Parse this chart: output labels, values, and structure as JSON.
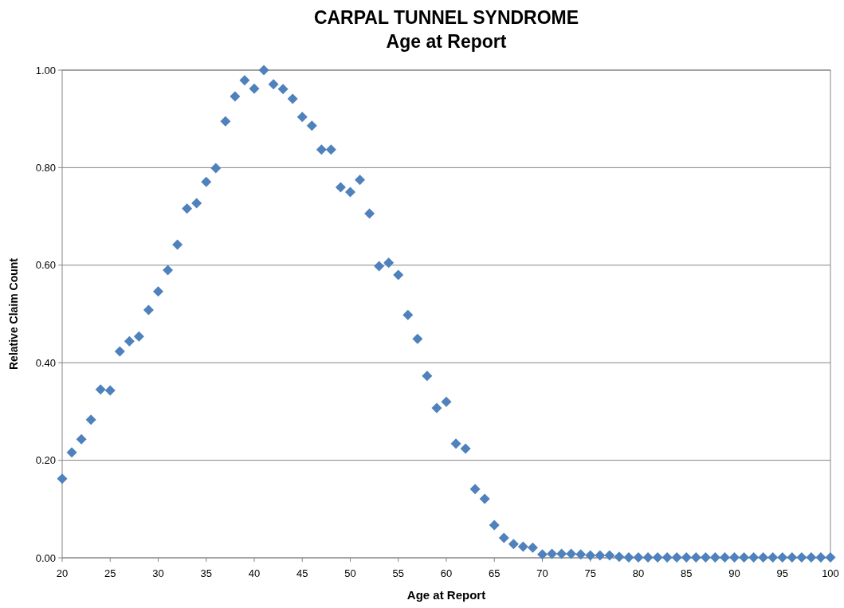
{
  "chart_data": {
    "type": "scatter",
    "title": "CARPAL TUNNEL SYNDROME",
    "subtitle": "Age at Report",
    "xlabel": "Age at Report",
    "ylabel": "Relative Claim Count",
    "x": [
      20,
      21,
      22,
      23,
      24,
      25,
      26,
      27,
      28,
      29,
      30,
      31,
      32,
      33,
      34,
      35,
      36,
      37,
      38,
      39,
      40,
      41,
      42,
      43,
      44,
      45,
      46,
      47,
      48,
      49,
      50,
      51,
      52,
      53,
      54,
      55,
      56,
      57,
      58,
      59,
      60,
      61,
      62,
      63,
      64,
      65,
      66,
      67,
      68,
      69,
      70,
      71,
      72,
      73,
      74,
      75,
      76,
      77,
      78,
      79,
      80,
      81,
      82,
      83,
      84,
      85,
      86,
      87,
      88,
      89,
      90,
      91,
      92,
      93,
      94,
      95,
      96,
      97,
      98,
      99,
      100
    ],
    "series": [
      {
        "color": "#4f81bd",
        "values": [
          0.162,
          0.216,
          0.243,
          0.283,
          0.345,
          0.343,
          0.423,
          0.444,
          0.454,
          0.508,
          0.546,
          0.59,
          0.642,
          0.716,
          0.727,
          0.771,
          0.799,
          0.895,
          0.946,
          0.979,
          0.962,
          1.0,
          0.971,
          0.961,
          0.941,
          0.904,
          0.886,
          0.837,
          0.837,
          0.76,
          0.75,
          0.775,
          0.706,
          0.598,
          0.605,
          0.58,
          0.498,
          0.449,
          0.373,
          0.307,
          0.32,
          0.234,
          0.224,
          0.141,
          0.121,
          0.067,
          0.041,
          0.028,
          0.023,
          0.021,
          0.007,
          0.008,
          0.008,
          0.008,
          0.007,
          0.005,
          0.005,
          0.005,
          0.002,
          0.001,
          0.001,
          0.001,
          0.001,
          0.001,
          0.001,
          0.001,
          0.001,
          0.001,
          0.001,
          0.001,
          0.001,
          0.001,
          0.001,
          0.001,
          0.001,
          0.001,
          0.001,
          0.001,
          0.001,
          0.001,
          0.001
        ]
      }
    ],
    "xlim": [
      20,
      100
    ],
    "xticks": [
      20,
      25,
      30,
      35,
      40,
      45,
      50,
      55,
      60,
      65,
      70,
      75,
      80,
      85,
      90,
      95,
      100
    ],
    "ylim": [
      0,
      1
    ],
    "yticks": [
      {
        "value": 0,
        "label": "0.00"
      },
      {
        "value": 0.2,
        "label": "0.20"
      },
      {
        "value": 0.4,
        "label": "0.40"
      },
      {
        "value": 0.6,
        "label": "0.60"
      },
      {
        "value": 0.8,
        "label": "0.80"
      },
      {
        "value": 1,
        "label": "1.00"
      }
    ],
    "grid": "y",
    "marker": "diamond"
  }
}
